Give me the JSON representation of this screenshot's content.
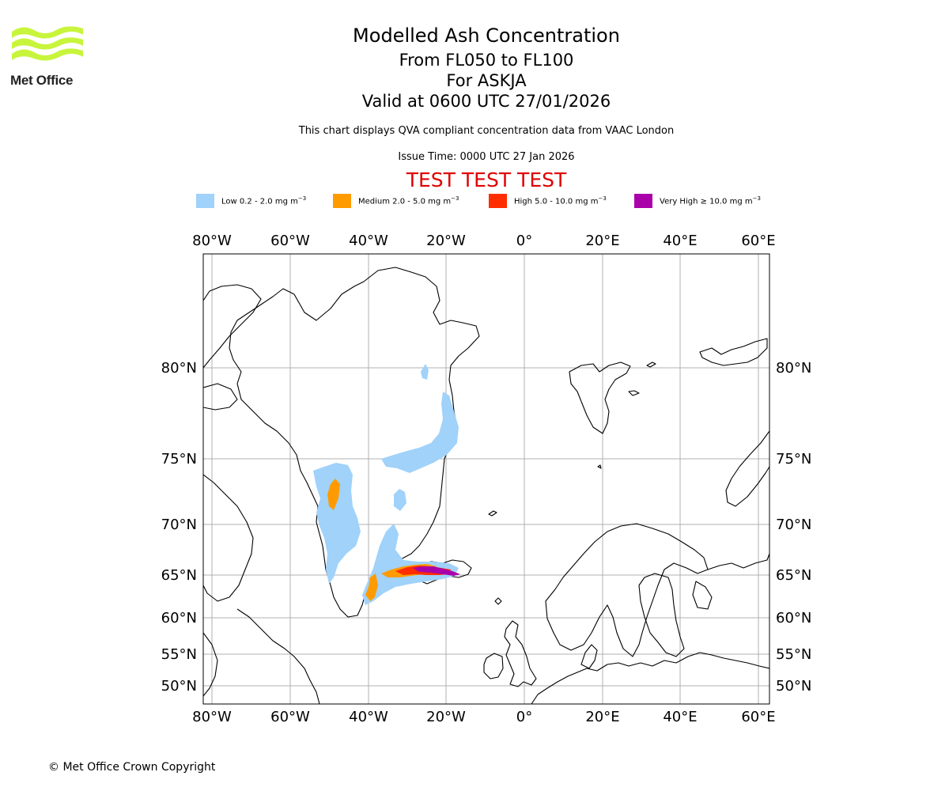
{
  "logo": {
    "text": "Met Office",
    "icon": "met-office-wave-icon",
    "color": "#c8f53c"
  },
  "titles": {
    "main": "Modelled Ash Concentration",
    "flight_levels": "From FL050 to FL100",
    "volcano": "For ASKJA",
    "valid": "Valid at 0600 UTC 27/01/2026",
    "subtitle": "This chart displays QVA compliant concentration data from VAAC London",
    "issue_time": "Issue Time: 0000 UTC 27 Jan 2026",
    "test_banner": "TEST TEST TEST"
  },
  "legend": [
    {
      "label": "Low 0.2 - 2.0 mg m",
      "color": "#a0d2fa"
    },
    {
      "label": "Medium 2.0 - 5.0 mg m",
      "color": "#ff9b00"
    },
    {
      "label": "High 5.0 - 10.0 mg m",
      "color": "#ff2d00"
    },
    {
      "label": "Very High ≥ 10.0 mg m",
      "color": "#aa00aa"
    }
  ],
  "legend_unit_exponent": "−3",
  "axes": {
    "longitude_labels": [
      "80°W",
      "60°W",
      "40°W",
      "20°W",
      "0°",
      "20°E",
      "40°E",
      "60°E"
    ],
    "latitude_labels": [
      "80°N",
      "75°N",
      "70°N",
      "65°N",
      "60°N",
      "55°N",
      "50°N"
    ]
  },
  "copyright": "© Met Office Crown Copyright"
}
